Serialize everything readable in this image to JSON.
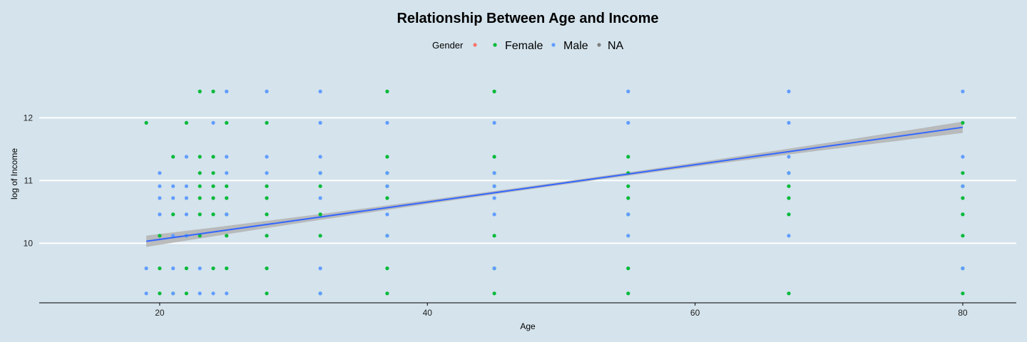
{
  "colors": {
    "background": "#d4e3ec",
    "gridline": "#ffffff",
    "axis": "#000000",
    "female": "#00ba38",
    "male": "#619cff",
    "na": "#7f7f7f",
    "legend_empty": "#f8766d",
    "trend_line": "#3366ff",
    "confidence_band": "#b3b3b3"
  },
  "chart_data": {
    "type": "scatter",
    "title": "Relationship Between Age and Income",
    "xlabel": "Age",
    "ylabel": "log of Income",
    "xlim": [
      11,
      84
    ],
    "ylim": [
      9.05,
      12.8
    ],
    "x_ticks": [
      20,
      40,
      60,
      80
    ],
    "y_ticks": [
      10,
      11,
      12
    ],
    "grid": "horizontal major lines only",
    "legend": {
      "position": "top",
      "title": "Gender",
      "entries": [
        {
          "label": "",
          "color": "#f8766d"
        },
        {
          "label": "Female",
          "color": "#00ba38"
        },
        {
          "label": "Male",
          "color": "#619cff"
        },
        {
          "label": "NA",
          "color": "#7f7f7f"
        }
      ]
    },
    "series": [
      {
        "name": "Female",
        "color": "#00ba38",
        "x": [
          19,
          20,
          20,
          20,
          21,
          21,
          21,
          22,
          22,
          22,
          22,
          23,
          23,
          23,
          23,
          23,
          23,
          23,
          24,
          24,
          24,
          24,
          24,
          24,
          24,
          25,
          25,
          25,
          25,
          25,
          25,
          28,
          28,
          28,
          28,
          28,
          28,
          28,
          32,
          32,
          32,
          32,
          32,
          37,
          37,
          37,
          37,
          37,
          37,
          37,
          37,
          45,
          45,
          45,
          45,
          45,
          45,
          45,
          55,
          55,
          55,
          55,
          55,
          55,
          55,
          67,
          67,
          67,
          67,
          67,
          80,
          80,
          80,
          80,
          80,
          80,
          80,
          80
        ],
        "values": [
          11.92,
          10.12,
          9.6,
          9.2,
          11.38,
          10.46,
          9.2,
          11.92,
          10.12,
          9.6,
          9.2,
          12.42,
          11.38,
          11.12,
          10.91,
          10.72,
          10.46,
          10.12,
          12.42,
          11.38,
          11.12,
          10.91,
          10.72,
          10.46,
          9.6,
          11.92,
          10.91,
          10.72,
          10.46,
          10.12,
          9.6,
          11.92,
          10.91,
          10.72,
          10.46,
          10.12,
          9.6,
          9.2,
          10.91,
          10.46,
          10.12,
          11.12,
          9.2,
          12.42,
          11.38,
          11.12,
          10.91,
          10.72,
          10.12,
          9.6,
          9.2,
          12.42,
          11.38,
          11.12,
          10.91,
          10.12,
          9.2,
          9.6,
          11.38,
          11.12,
          10.91,
          10.72,
          10.46,
          9.6,
          9.2,
          10.91,
          10.72,
          10.46,
          11.12,
          9.2,
          11.92,
          11.12,
          10.91,
          10.72,
          10.46,
          10.12,
          9.6,
          9.2
        ]
      },
      {
        "name": "Male",
        "color": "#619cff",
        "x": [
          19,
          19,
          20,
          20,
          20,
          20,
          21,
          21,
          21,
          21,
          21,
          22,
          22,
          22,
          22,
          22,
          23,
          23,
          24,
          24,
          25,
          25,
          25,
          25,
          25,
          28,
          28,
          28,
          32,
          32,
          32,
          32,
          32,
          32,
          32,
          37,
          37,
          37,
          37,
          37,
          45,
          45,
          45,
          45,
          45,
          45,
          55,
          55,
          55,
          55,
          67,
          67,
          67,
          67,
          67,
          80,
          80,
          80,
          80
        ],
        "values": [
          9.6,
          9.2,
          11.12,
          10.91,
          10.72,
          10.46,
          10.91,
          10.72,
          10.12,
          9.6,
          9.2,
          11.38,
          10.91,
          10.72,
          10.46,
          10.12,
          9.6,
          9.2,
          11.92,
          9.2,
          12.42,
          11.38,
          11.12,
          10.46,
          9.2,
          12.42,
          11.38,
          11.12,
          12.42,
          11.92,
          11.38,
          11.12,
          10.72,
          9.6,
          9.2,
          11.92,
          11.12,
          10.91,
          10.46,
          10.12,
          11.92,
          10.72,
          10.46,
          9.6,
          11.12,
          10.91,
          12.42,
          11.92,
          10.46,
          10.12,
          12.42,
          11.92,
          11.38,
          11.12,
          10.12,
          12.42,
          11.38,
          10.91,
          9.6
        ]
      }
    ],
    "trend": {
      "method": "linear fit with confidence band",
      "x_range": [
        19,
        80
      ],
      "intercept": 9.465,
      "slope": 0.0298,
      "band_halfwidth_ends": 0.09,
      "band_halfwidth_center": 0.025
    }
  }
}
